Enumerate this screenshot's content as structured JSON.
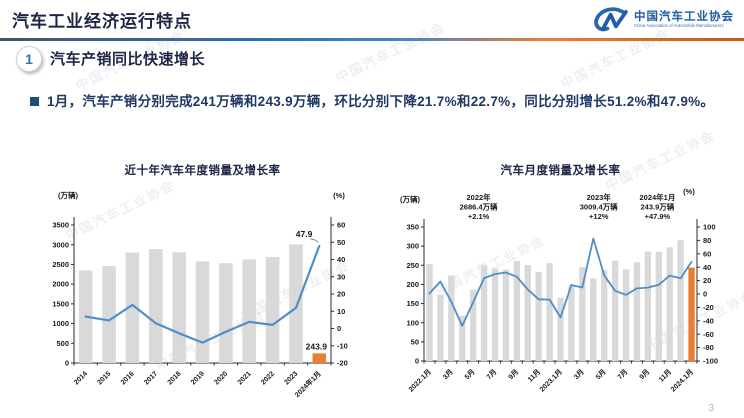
{
  "page": {
    "title": "汽车工业经济运行特点",
    "page_number": "3",
    "watermark": "中国汽车工业协会"
  },
  "logo": {
    "name_cn": "中国汽车工业协会",
    "name_en": "China Association of Automobile Manufacturers"
  },
  "section": {
    "number": "1",
    "heading": "汽车产销同比快速增长",
    "bullet_text": "1月，汽车产销分别完成241万辆和243.9万辆，环比分别下降21.7%和22.7%，同比分别增长51.2%和47.9%。"
  },
  "colors": {
    "heading_navy": "#1b2744",
    "body_navy": "#1f3864",
    "bar_gray": "#d9d9d9",
    "bar_orange": "#ed7d31",
    "line_blue": "#4e8fc7",
    "divider_blue": "#2e74b5",
    "divider_orange": "#c55a11"
  },
  "chart_data": [
    {
      "id": "annual",
      "type": "bar",
      "title": "近十年汽车年度销量及增长率",
      "left_axis_title": "(万辆)",
      "right_axis_title": "(%)",
      "categories": [
        "2014",
        "2015",
        "2016",
        "2017",
        "2018",
        "2019",
        "2020",
        "2021",
        "2022",
        "2023",
        "2024年1月"
      ],
      "series": [
        {
          "name": "年度销量(万辆)",
          "type": "bar",
          "axis": "left",
          "values": [
            2349.2,
            2459.8,
            2802.8,
            2887.9,
            2808.1,
            2576.9,
            2531.1,
            2627.5,
            2686.4,
            3009.4,
            243.9
          ]
        },
        {
          "name": "增长率(%)",
          "type": "line",
          "axis": "right",
          "values": [
            6.9,
            4.7,
            13.7,
            3.0,
            -2.8,
            -8.2,
            -1.9,
            3.8,
            2.1,
            12.0,
            47.9
          ]
        }
      ],
      "left_ylim": [
        0,
        3500
      ],
      "left_tick_step": 500,
      "right_ylim": [
        -20,
        60
      ],
      "right_tick_step": 10,
      "point_labels": {
        "line_last": "47.9",
        "bar_last": "243.9"
      },
      "highlight_last_bar": true,
      "x_tick_every": 1,
      "grid": false,
      "legend": "none"
    },
    {
      "id": "monthly",
      "type": "bar",
      "title": "汽车月度销量及增长率",
      "left_axis_title": "(万辆)",
      "right_axis_title": "(%)",
      "categories": [
        "2022.1月",
        "2月",
        "3月",
        "4月",
        "5月",
        "6月",
        "7月",
        "8月",
        "9月",
        "10月",
        "11月",
        "12月",
        "2023.1月",
        "2月",
        "3月",
        "4月",
        "5月",
        "6月",
        "7月",
        "8月",
        "9月",
        "10月",
        "11月",
        "12月",
        "2024.1月"
      ],
      "x_tick_labels": [
        "2022.1月",
        "3月",
        "5月",
        "7月",
        "9月",
        "11月",
        "2023.1月",
        "3月",
        "5月",
        "7月",
        "9月",
        "11月",
        "2024.1月"
      ],
      "series": [
        {
          "name": "月度销量(万辆)",
          "type": "bar",
          "axis": "left",
          "values": [
            253.1,
            173.7,
            223.4,
            118.1,
            186.2,
            250.2,
            242.0,
            238.3,
            261.0,
            250.5,
            232.8,
            255.6,
            164.9,
            197.6,
            245.1,
            215.9,
            238.2,
            262.2,
            238.8,
            258.2,
            285.8,
            285.3,
            297.0,
            315.6,
            243.9
          ]
        },
        {
          "name": "增长率(%)",
          "type": "line",
          "axis": "right",
          "values": [
            0.9,
            18.7,
            -11.7,
            -47.6,
            -12.6,
            23.8,
            29.7,
            32.1,
            25.7,
            6.9,
            -7.9,
            -8.4,
            -35.0,
            13.5,
            9.7,
            82.7,
            27.9,
            4.8,
            -1.4,
            8.4,
            9.5,
            13.8,
            27.4,
            23.5,
            47.9
          ]
        }
      ],
      "left_ylim": [
        0,
        350
      ],
      "left_tick_step": 50,
      "right_ylim": [
        -100,
        100
      ],
      "right_tick_step": 20,
      "annotations": [
        {
          "lines": [
            "2022年",
            "2686.4万辆",
            "+2.1%"
          ]
        },
        {
          "lines": [
            "2023年",
            "3009.4万辆",
            "+12%"
          ]
        },
        {
          "lines": [
            "2024年1月",
            "243.9万辆",
            "+47.9%"
          ]
        }
      ],
      "highlight_last_bar": true,
      "x_tick_every": 2,
      "grid": false,
      "legend": "none"
    }
  ]
}
